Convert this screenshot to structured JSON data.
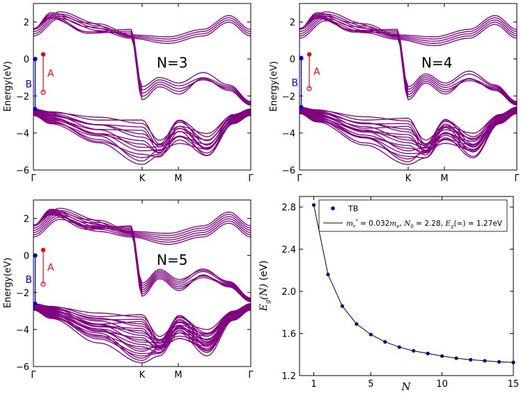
{
  "chart_data": [
    {
      "type": "line",
      "panel": "band-structure",
      "annotation": "N=3",
      "ylabel": "Energy(eV)",
      "ylim": [
        -6,
        3
      ],
      "yticks": [
        "2",
        "0",
        "−2",
        "−4",
        "−6"
      ],
      "ytick_values": [
        2,
        0,
        -2,
        -4,
        -6
      ],
      "xtick_labels": [
        "Γ",
        "K",
        "M",
        "Γ"
      ],
      "xtick_positions": [
        0,
        0.5,
        0.6667,
        1
      ],
      "line_color": "#800080",
      "markers": {
        "A": {
          "label": "A",
          "top": 0.25,
          "bottom": -1.8,
          "color": "#ff0000"
        },
        "B": {
          "label": "B",
          "top": 0.0,
          "bottom": -2.7,
          "color": "#0000ff"
        }
      },
      "bands": {
        "valence_top": -2.7,
        "valence_bottom": -5.7,
        "valence_count": 14,
        "conduction_bottom": -1.8,
        "conduction_top": 2.6,
        "conduction_count": 5,
        "gap_top": 0.25
      }
    },
    {
      "type": "line",
      "panel": "band-structure",
      "annotation": "N=4",
      "ylabel": "Energy(eV)",
      "ylim": [
        -6,
        3
      ],
      "yticks": [
        "2",
        "0",
        "−2",
        "−4",
        "−6"
      ],
      "ytick_values": [
        2,
        0,
        -2,
        -4,
        -6
      ],
      "xtick_labels": [
        "Γ",
        "K",
        "M",
        "Γ"
      ],
      "xtick_positions": [
        0,
        0.5,
        0.6667,
        1
      ],
      "line_color": "#800080",
      "markers": {
        "A": {
          "label": "A",
          "top": 0.25,
          "bottom": -1.6,
          "color": "#ff0000"
        },
        "B": {
          "label": "B",
          "top": 0.05,
          "bottom": -2.6,
          "color": "#0000ff"
        }
      },
      "bands": {
        "valence_top": -2.6,
        "valence_bottom": -5.7,
        "valence_count": 18,
        "conduction_bottom": -1.6,
        "conduction_top": 2.6,
        "conduction_count": 6,
        "gap_top": 0.25
      }
    },
    {
      "type": "line",
      "panel": "band-structure",
      "annotation": "N=5",
      "ylabel": "Energy(eV)",
      "ylim": [
        -6,
        3
      ],
      "yticks": [
        "2",
        "0",
        "−2",
        "−4",
        "−6"
      ],
      "ytick_values": [
        2,
        0,
        -2,
        -4,
        -6
      ],
      "xtick_labels": [
        "Γ",
        "K",
        "M",
        "Γ"
      ],
      "xtick_positions": [
        0,
        0.5,
        0.6667,
        1
      ],
      "line_color": "#800080",
      "markers": {
        "A": {
          "label": "A",
          "top": 0.3,
          "bottom": -1.55,
          "color": "#ff0000"
        },
        "B": {
          "label": "B",
          "top": 0.0,
          "bottom": -2.6,
          "color": "#0000ff"
        }
      },
      "bands": {
        "valence_top": -2.6,
        "valence_bottom": -5.8,
        "valence_count": 22,
        "conduction_bottom": -1.55,
        "conduction_top": 2.6,
        "conduction_count": 7,
        "gap_top": 0.3
      }
    },
    {
      "type": "scatter",
      "panel": "gap-vs-N",
      "xlabel": "N",
      "ylabel": "E_g(N) (eV)",
      "xlim": [
        0,
        15
      ],
      "ylim": [
        1.2,
        2.9
      ],
      "xticks": [
        1,
        5,
        10,
        15
      ],
      "yticks": [
        1.2,
        1.6,
        2.0,
        2.4,
        2.8
      ],
      "legend_position": "top",
      "series": [
        {
          "name": "TB",
          "color": "#00008b",
          "x": [
            1,
            2,
            3,
            4,
            5,
            6,
            7,
            8,
            9,
            10,
            11,
            12,
            13,
            14,
            15
          ],
          "y": [
            2.82,
            2.16,
            1.86,
            1.69,
            1.59,
            1.52,
            1.47,
            1.435,
            1.41,
            1.385,
            1.365,
            1.35,
            1.34,
            1.33,
            1.325
          ]
        },
        {
          "name": "m_r* = 0.032m_e, N_0 = 2.28, E_g(∞) = 1.27eV",
          "color": "#000000",
          "fit": {
            "mr": 0.032,
            "N0": 2.28,
            "Einf": 1.27
          }
        }
      ]
    }
  ],
  "legend": {
    "tb_label": "TB",
    "fit_prefix_m": "m",
    "fit_sub_r": "r",
    "fit_sup_star": "*",
    "fit_eq1": " = 0.032",
    "fit_m2": "m",
    "fit_sub_e": "e",
    "fit_sep1": ", ",
    "fit_N": "N",
    "fit_sub_0": "0",
    "fit_eq2": " = 2.28, ",
    "fit_E": "E",
    "fit_sub_g": "g",
    "fit_inf": "(∞)",
    "fit_eq3": " = 1.27eV"
  },
  "axis_text": {
    "gap_ylabel_E": "E",
    "gap_ylabel_g": "g",
    "gap_ylabel_N": "(N)",
    "gap_ylabel_unit": " (eV)",
    "gap_xlabel": "N"
  }
}
